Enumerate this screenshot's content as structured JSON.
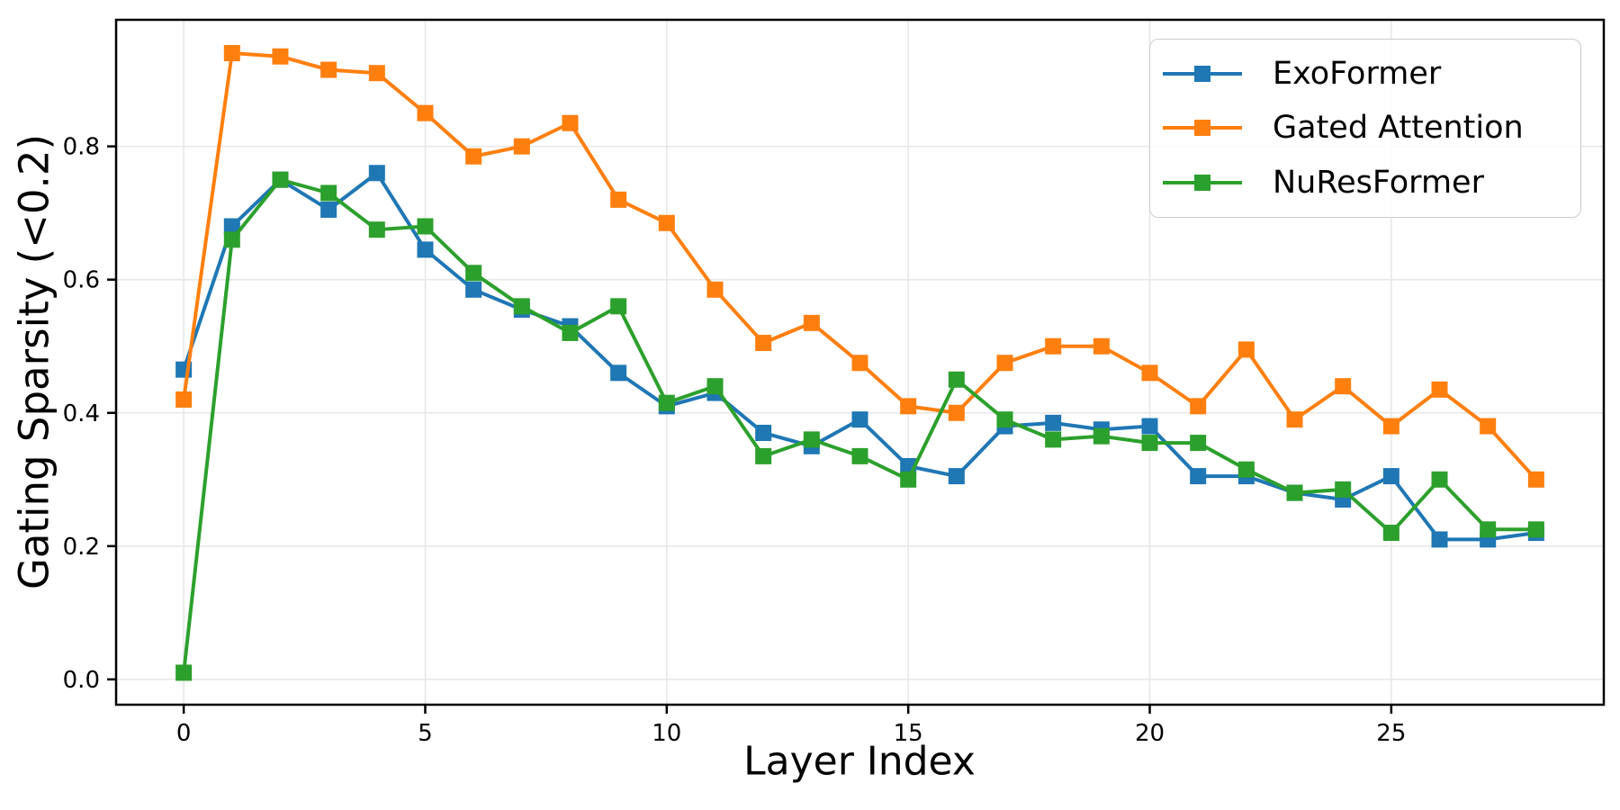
{
  "chart_data": {
    "type": "line",
    "title": "",
    "xlabel": "Layer Index",
    "ylabel": "Gating Sparsity (<0.2)",
    "x": [
      0,
      1,
      2,
      3,
      4,
      5,
      6,
      7,
      8,
      9,
      10,
      11,
      12,
      13,
      14,
      15,
      16,
      17,
      18,
      19,
      20,
      21,
      22,
      23,
      24,
      25,
      26,
      27,
      28
    ],
    "series": [
      {
        "name": "ExoFormer",
        "color": "#1f77b4",
        "marker": "square",
        "values": [
          0.465,
          0.68,
          0.75,
          0.705,
          0.76,
          0.645,
          0.585,
          0.555,
          0.53,
          0.46,
          0.41,
          0.43,
          0.37,
          0.35,
          0.39,
          0.32,
          0.305,
          0.38,
          0.385,
          0.375,
          0.38,
          0.305,
          0.305,
          0.28,
          0.27,
          0.305,
          0.21,
          0.21,
          0.22
        ]
      },
      {
        "name": "Gated Attention",
        "color": "#ff7f0e",
        "marker": "square",
        "values": [
          0.42,
          0.94,
          0.935,
          0.915,
          0.91,
          0.85,
          0.785,
          0.8,
          0.835,
          0.72,
          0.685,
          0.585,
          0.505,
          0.535,
          0.475,
          0.41,
          0.4,
          0.475,
          0.5,
          0.5,
          0.46,
          0.41,
          0.495,
          0.39,
          0.44,
          0.38,
          0.435,
          0.38,
          0.3
        ]
      },
      {
        "name": "NuResFormer",
        "color": "#2ca02c",
        "marker": "square",
        "values": [
          0.01,
          0.66,
          0.75,
          0.73,
          0.675,
          0.68,
          0.61,
          0.56,
          0.52,
          0.56,
          0.415,
          0.44,
          0.335,
          0.36,
          0.335,
          0.3,
          0.45,
          0.39,
          0.36,
          0.365,
          0.355,
          0.355,
          0.315,
          0.28,
          0.285,
          0.22,
          0.3,
          0.225,
          0.225
        ]
      }
    ],
    "xticks": {
      "values": [
        0,
        5,
        10,
        15,
        20,
        25
      ],
      "labels": [
        "0",
        "5",
        "10",
        "15",
        "20",
        "25"
      ]
    },
    "yticks": {
      "values": [
        0.0,
        0.2,
        0.4,
        0.6,
        0.8
      ],
      "labels": [
        "0.0",
        "0.2",
        "0.4",
        "0.6",
        "0.8"
      ]
    },
    "xlim": [
      -1.4,
      29.4
    ],
    "ylim": [
      -0.038,
      0.99
    ],
    "grid": true,
    "legend_position": "upper right",
    "background_color": "#ffffff",
    "grid_color": "#e6e6e6",
    "spine_color": "#000000"
  }
}
